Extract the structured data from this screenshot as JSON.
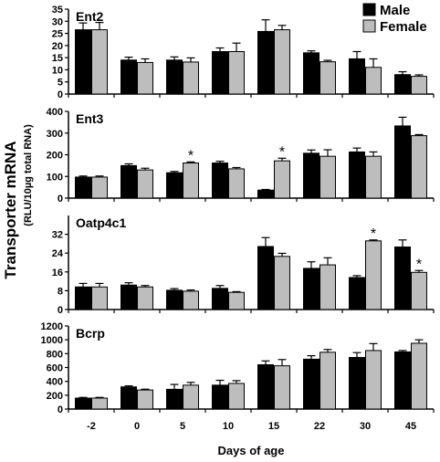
{
  "chart_data": {
    "type": "bar",
    "ylabel_main": "Transporter mRNA",
    "ylabel_sub": "(RLU/10µg total RNA)",
    "xlabel": "Days of age",
    "categories": [
      "-2",
      "0",
      "5",
      "10",
      "15",
      "22",
      "30",
      "45"
    ],
    "legend": {
      "placement": "top-right",
      "entries": [
        {
          "name": "Male",
          "color": "#000000"
        },
        {
          "name": "Female",
          "color": "#bdbdbd"
        }
      ]
    },
    "colors": {
      "male": "#000000",
      "female": "#bdbdbd"
    },
    "significance_marker": "*",
    "panels": [
      {
        "name": "Ent2",
        "ylim": [
          0,
          35
        ],
        "yticks": [
          "0",
          "5",
          "10",
          "15",
          "20",
          "25",
          "30",
          "35"
        ],
        "series": [
          {
            "name": "Male",
            "values": [
              26.5,
              14,
              14,
              17.5,
              25.8,
              17,
              14.5,
              8
            ],
            "errors": [
              2.8,
              1.2,
              1.3,
              1.5,
              4.8,
              0.8,
              3,
              1.2
            ]
          },
          {
            "name": "Female",
            "values": [
              26.5,
              13,
              13.2,
              17.5,
              26.5,
              13.3,
              11,
              7.3
            ],
            "errors": [
              3,
              1.5,
              1.7,
              3.5,
              1.8,
              0.6,
              3.5,
              0.6
            ]
          }
        ],
        "significant": []
      },
      {
        "name": "Ent3",
        "ylim": [
          0,
          400
        ],
        "yticks": [
          "0",
          "100",
          "200",
          "300",
          "400"
        ],
        "series": [
          {
            "name": "Male",
            "values": [
              97,
              150,
              117,
              162,
              37,
              207,
              213,
              333
            ],
            "errors": [
              5,
              8,
              6,
              8,
              3,
              15,
              18,
              40
            ]
          },
          {
            "name": "Female",
            "values": [
              97,
              130,
              162,
              135,
              172,
              193,
              193,
              288
            ],
            "errors": [
              5,
              8,
              5,
              6,
              12,
              30,
              20,
              5
            ]
          }
        ],
        "significant": [
          {
            "category": "5",
            "series": "Female"
          },
          {
            "category": "15",
            "series": "Female"
          }
        ]
      },
      {
        "name": "Oatp4c1",
        "ylim": [
          0,
          40
        ],
        "yticks": [
          "0",
          "8",
          "16",
          "24",
          "32"
        ],
        "series": [
          {
            "name": "Male",
            "values": [
              9.6,
              10.4,
              8.2,
              9,
              26.8,
              17.5,
              13.6,
              26.6
            ],
            "errors": [
              1.5,
              1,
              0.7,
              1.2,
              3.8,
              2.8,
              0.8,
              3
            ]
          },
          {
            "name": "Female",
            "values": [
              9.6,
              9.6,
              7.8,
              7.3,
              22.6,
              19,
              29.2,
              15.8
            ],
            "errors": [
              1.5,
              0.6,
              0.5,
              0.3,
              1.3,
              3,
              0.4,
              0.8
            ]
          }
        ],
        "significant": [
          {
            "category": "30",
            "series": "Female"
          },
          {
            "category": "45",
            "series": "Female"
          }
        ]
      },
      {
        "name": "Bcrp",
        "ylim": [
          0,
          1200
        ],
        "yticks": [
          "0",
          "200",
          "400",
          "600",
          "800",
          "1000",
          "1200"
        ],
        "series": [
          {
            "name": "Male",
            "values": [
              158,
              320,
              285,
              345,
              640,
              720,
              745,
              825
            ],
            "errors": [
              10,
              15,
              70,
              70,
              55,
              50,
              70,
              20
            ]
          },
          {
            "name": "Female",
            "values": [
              158,
              275,
              345,
              370,
              625,
              820,
              845,
              950
            ],
            "errors": [
              10,
              12,
              40,
              40,
              90,
              40,
              100,
              50
            ]
          }
        ],
        "significant": []
      }
    ]
  }
}
